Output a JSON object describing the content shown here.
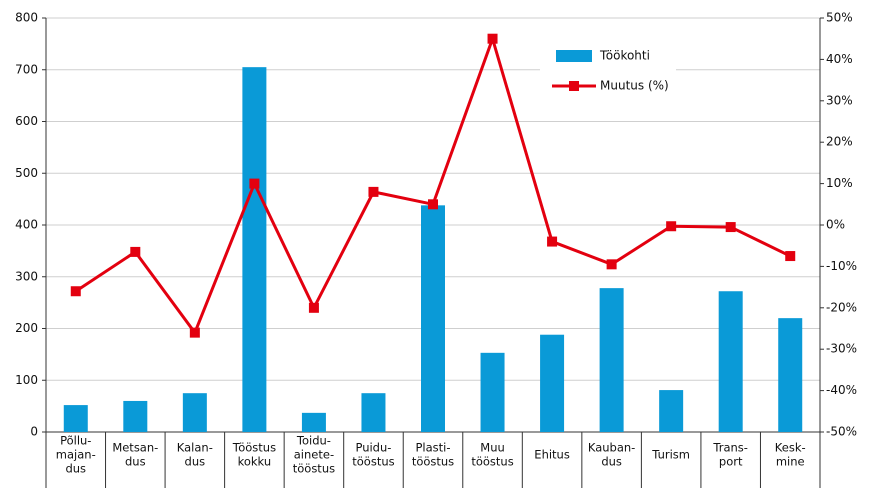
{
  "chart_data": {
    "type": "bar_line",
    "categories": [
      [
        "Põllu-",
        "majan-",
        "dus"
      ],
      [
        "Metsan-",
        "dus"
      ],
      [
        "Kalan-",
        "dus"
      ],
      [
        "Tööstus",
        "kokku"
      ],
      [
        "Toidu-",
        "ainete-",
        "tööstus"
      ],
      [
        "Puidu-",
        "tööstus"
      ],
      [
        "Plasti-",
        "tööstus"
      ],
      [
        "Muu",
        "tööstus"
      ],
      [
        "Ehitus"
      ],
      [
        "Kauban-",
        "dus"
      ],
      [
        "Turism"
      ],
      [
        "Trans-",
        "port"
      ],
      [
        "Kesk-",
        "mine"
      ]
    ],
    "series": [
      {
        "name": "Töökohti",
        "type": "bar",
        "color": "#0a9ad7",
        "values": [
          52,
          60,
          75,
          705,
          37,
          75,
          438,
          153,
          188,
          278,
          81,
          272,
          220
        ]
      },
      {
        "name": "Muutus (%)",
        "type": "line",
        "axis": "y2",
        "color": "#e3000f",
        "values": [
          -16,
          -6.5,
          -26,
          10,
          -20,
          8,
          5,
          45,
          -4,
          -9.5,
          -0.3,
          -0.5,
          -7.5
        ]
      }
    ],
    "ylim": [
      0,
      800
    ],
    "yticks": [
      0,
      100,
      200,
      300,
      400,
      500,
      600,
      700,
      800
    ],
    "y2lim": [
      -50,
      50
    ],
    "y2ticks": [
      {
        "value": -50,
        "label": "-50%"
      },
      {
        "value": -40,
        "label": "-40%"
      },
      {
        "value": -30,
        "label": "-30%"
      },
      {
        "value": -20,
        "label": "-20%"
      },
      {
        "value": -10,
        "label": "-10%"
      },
      {
        "value": 0,
        "label": "0%"
      },
      {
        "value": 10,
        "label": "10%"
      },
      {
        "value": 20,
        "label": "20%"
      },
      {
        "value": 30,
        "label": "30%"
      },
      {
        "value": 40,
        "label": "40%"
      },
      {
        "value": 50,
        "label": "50%"
      }
    ],
    "grid": true
  }
}
